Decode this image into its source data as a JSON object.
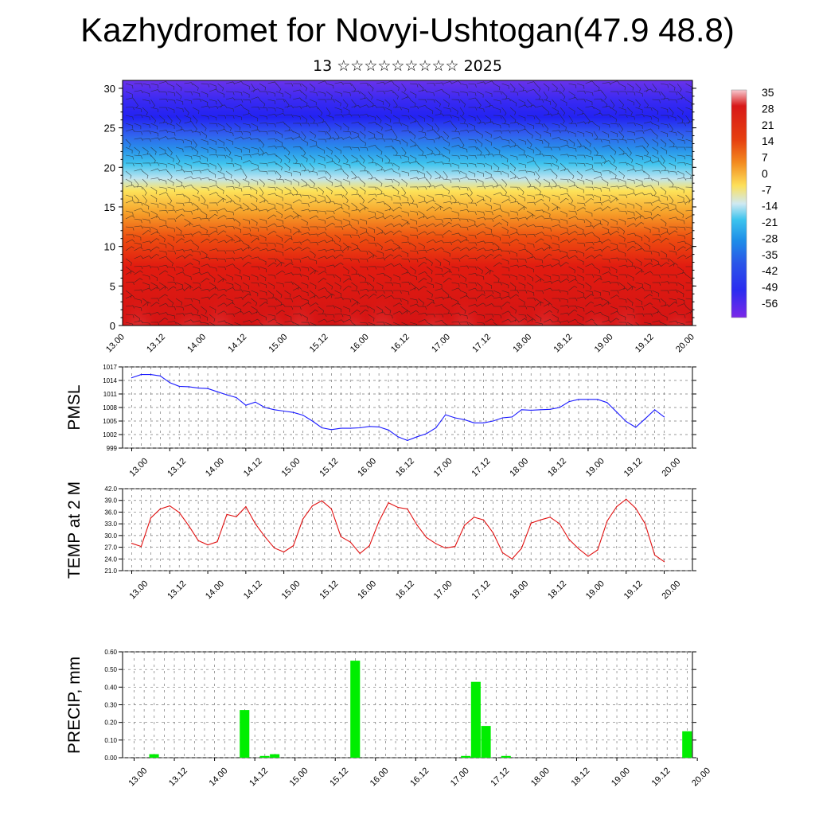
{
  "title": "Kazhydromet for Novyi-Ushtogan(47.9 48.8)",
  "subtitle": "13 ☆☆☆☆☆☆☆☆☆ 2025",
  "time_labels": [
    "13.00",
    "13.12",
    "14.00",
    "14.12",
    "15.00",
    "15.12",
    "16.00",
    "16.12",
    "17.00",
    "17.12",
    "18.00",
    "18.12",
    "19.00",
    "19.12",
    "20.00"
  ],
  "chart_data": [
    {
      "type": "heatmap",
      "name": "temperature-height-section",
      "ylim": [
        0,
        31
      ],
      "yticks": [
        "0",
        "5",
        "10",
        "15",
        "20",
        "25",
        "30"
      ],
      "colorbar": {
        "labels": [
          "35",
          "28",
          "21",
          "14",
          "7",
          "0",
          "-7",
          "-14",
          "-21",
          "-28",
          "-35",
          "-42",
          "-49",
          "-56"
        ],
        "colors": [
          "#f7c9d0",
          "#d81818",
          "#e23a10",
          "#f06a12",
          "#f79020",
          "#fbb63a",
          "#fde05a",
          "#c9e8f2",
          "#3cc4ee",
          "#1e8ee8",
          "#2a56e8",
          "#2b2bf0",
          "#3a1cf0",
          "#7b28e8"
        ]
      },
      "grid": false,
      "wind_barbs": true
    },
    {
      "type": "line",
      "name": "pmsl",
      "ylabel": "PMSL",
      "ylim": [
        999,
        1017
      ],
      "yticks": [
        "999",
        "1002",
        "1005",
        "1008",
        "1011",
        "1014",
        "1017"
      ],
      "color": "#1a1aff",
      "values": [
        1014.6,
        1015.3,
        1015.3,
        1015.0,
        1013.5,
        1012.7,
        1012.6,
        1012.3,
        1012.2,
        1011.5,
        1010.8,
        1010.2,
        1008.5,
        1009.2,
        1008.0,
        1007.5,
        1007.2,
        1006.9,
        1006.3,
        1005.0,
        1003.5,
        1003.1,
        1003.4,
        1003.4,
        1003.5,
        1003.8,
        1003.7,
        1003.0,
        1001.5,
        1000.7,
        1001.5,
        1002.2,
        1003.5,
        1006.4,
        1005.7,
        1005.3,
        1004.6,
        1004.6,
        1005.0,
        1005.7,
        1005.9,
        1007.5,
        1007.4,
        1007.5,
        1007.6,
        1008.0,
        1009.3,
        1009.8,
        1009.8,
        1009.8,
        1009.1,
        1007.0,
        1004.9,
        1003.6,
        1005.5,
        1007.5,
        1005.9
      ],
      "grid": true
    },
    {
      "type": "line",
      "name": "temp-2m",
      "ylabel": "TEMP at 2 M",
      "ylim": [
        21.0,
        42.0
      ],
      "yticks": [
        "21.0",
        "24.0",
        "27.0",
        "30.0",
        "33.0",
        "36.0",
        "39.0",
        "42.0"
      ],
      "color": "#e01010",
      "values": [
        28.0,
        27.2,
        34.5,
        36.8,
        37.6,
        35.9,
        32.5,
        28.7,
        27.6,
        28.4,
        35.4,
        34.8,
        37.4,
        33.0,
        29.7,
        26.8,
        25.8,
        27.4,
        34.2,
        37.6,
        38.9,
        36.8,
        29.7,
        28.3,
        25.4,
        27.4,
        33.6,
        38.4,
        37.2,
        36.8,
        32.7,
        29.5,
        27.9,
        26.8,
        27.2,
        32.6,
        34.7,
        34.0,
        30.7,
        25.6,
        24.0,
        26.7,
        33.2,
        34.0,
        34.7,
        33.0,
        29.0,
        26.6,
        24.7,
        26.3,
        33.7,
        37.4,
        39.3,
        37.0,
        33.0,
        25.0,
        23.3
      ],
      "grid": true
    },
    {
      "type": "bar",
      "name": "precip",
      "ylabel": "PRECIP, mm",
      "ylim": [
        0,
        0.6
      ],
      "yticks": [
        "0.00",
        "0.10",
        "0.20",
        "0.30",
        "0.40",
        "0.50",
        "0.60"
      ],
      "color": "#00ee00",
      "values": [
        0,
        0,
        0.02,
        0,
        0,
        0,
        0,
        0,
        0,
        0,
        0,
        0.27,
        0,
        0.01,
        0.02,
        0,
        0,
        0,
        0,
        0,
        0,
        0,
        0.55,
        0,
        0,
        0,
        0,
        0,
        0,
        0,
        0,
        0,
        0,
        0.01,
        0.43,
        0.18,
        0,
        0.01,
        0,
        0,
        0,
        0,
        0,
        0,
        0,
        0,
        0,
        0,
        0,
        0,
        0,
        0,
        0,
        0,
        0,
        0.15
      ],
      "grid": true
    }
  ]
}
